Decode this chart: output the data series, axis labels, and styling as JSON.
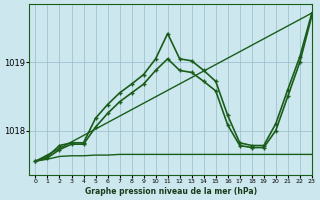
{
  "title": "Graphe pression niveau de la mer (hPa)",
  "bg_color": "#cce8ee",
  "grid_color": "#99bbcc",
  "line_color": "#1a5c1a",
  "xlim": [
    -0.5,
    23
  ],
  "ylim": [
    1017.35,
    1019.85
  ],
  "yticks": [
    1018,
    1019
  ],
  "xticks": [
    0,
    1,
    2,
    3,
    4,
    5,
    6,
    7,
    8,
    9,
    10,
    11,
    12,
    13,
    14,
    15,
    16,
    17,
    18,
    19,
    20,
    21,
    22,
    23
  ],
  "series": [
    {
      "x": [
        0,
        1,
        2,
        3,
        4,
        5,
        6,
        7,
        8,
        9,
        10,
        11,
        12,
        13,
        14,
        15,
        16,
        17,
        18,
        19,
        20,
        21,
        22,
        23
      ],
      "y": [
        1017.55,
        1017.58,
        1017.62,
        1017.63,
        1017.63,
        1017.64,
        1017.64,
        1017.65,
        1017.65,
        1017.65,
        1017.65,
        1017.65,
        1017.65,
        1017.65,
        1017.65,
        1017.65,
        1017.65,
        1017.65,
        1017.65,
        1017.65,
        1017.65,
        1017.65,
        1017.65,
        1017.65
      ],
      "marker": null,
      "lw": 1.0
    },
    {
      "x": [
        0,
        23
      ],
      "y": [
        1017.55,
        1019.72
      ],
      "marker": null,
      "lw": 1.0
    },
    {
      "x": [
        0,
        1,
        2,
        3,
        4,
        5,
        6,
        7,
        8,
        9,
        10,
        11,
        12,
        13,
        14,
        15,
        16,
        17,
        18,
        19,
        20,
        21,
        22,
        23
      ],
      "y": [
        1017.55,
        1017.62,
        1017.78,
        1017.82,
        1017.82,
        1018.18,
        1018.38,
        1018.55,
        1018.68,
        1018.82,
        1019.05,
        1019.42,
        1019.05,
        1019.02,
        1018.88,
        1018.72,
        1018.22,
        1017.82,
        1017.78,
        1017.78,
        1018.1,
        1018.6,
        1019.08,
        1019.72
      ],
      "marker": "+",
      "lw": 1.2
    },
    {
      "x": [
        0,
        1,
        2,
        3,
        4,
        5,
        6,
        7,
        8,
        9,
        10,
        11,
        12,
        13,
        14,
        15,
        16,
        17,
        18,
        19,
        20,
        21,
        22,
        23
      ],
      "y": [
        1017.55,
        1017.6,
        1017.72,
        1017.8,
        1017.8,
        1018.05,
        1018.25,
        1018.42,
        1018.55,
        1018.68,
        1018.88,
        1019.05,
        1018.88,
        1018.85,
        1018.72,
        1018.58,
        1018.08,
        1017.78,
        1017.75,
        1017.75,
        1018.0,
        1018.5,
        1019.0,
        1019.68
      ],
      "marker": "+",
      "lw": 1.2
    }
  ]
}
